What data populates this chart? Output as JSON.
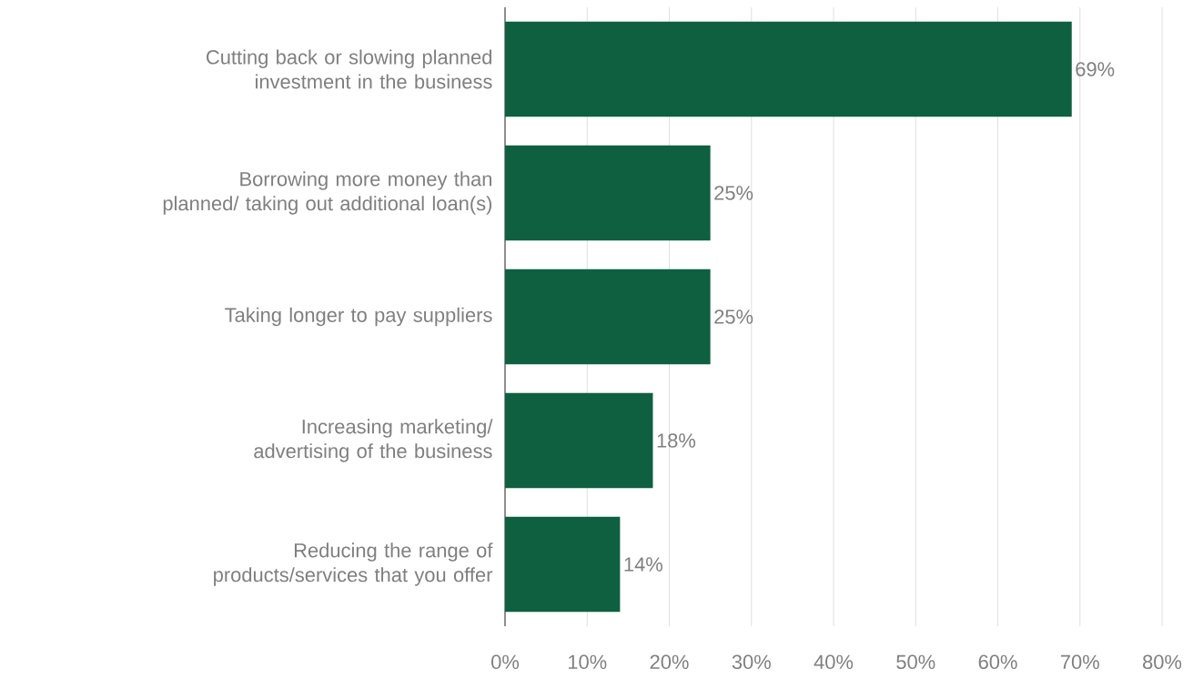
{
  "chart_data": {
    "type": "bar",
    "orientation": "horizontal",
    "categories": [
      "Cutting back or slowing planned investment in the business",
      "Borrowing more money than planned/ taking out additional loan(s)",
      "Taking longer to pay suppliers",
      "Increasing marketing/ advertising of the business",
      "Reducing the range of products/services that you offer"
    ],
    "values": [
      69,
      25,
      25,
      18,
      14
    ],
    "value_labels": [
      "69%",
      "25%",
      "25%",
      "18%",
      "14%"
    ],
    "color": "#0e6040",
    "xlim": [
      0,
      80
    ],
    "xticks": [
      {
        "value": 0,
        "label": "0%"
      },
      {
        "value": 10,
        "label": "10%"
      },
      {
        "value": 20,
        "label": "20%"
      },
      {
        "value": 30,
        "label": "30%"
      },
      {
        "value": 40,
        "label": "40%"
      },
      {
        "value": 50,
        "label": "50%"
      },
      {
        "value": 60,
        "label": "60%"
      },
      {
        "value": 70,
        "label": "70%"
      },
      {
        "value": 80,
        "label": "80%"
      }
    ],
    "grid": "x"
  }
}
